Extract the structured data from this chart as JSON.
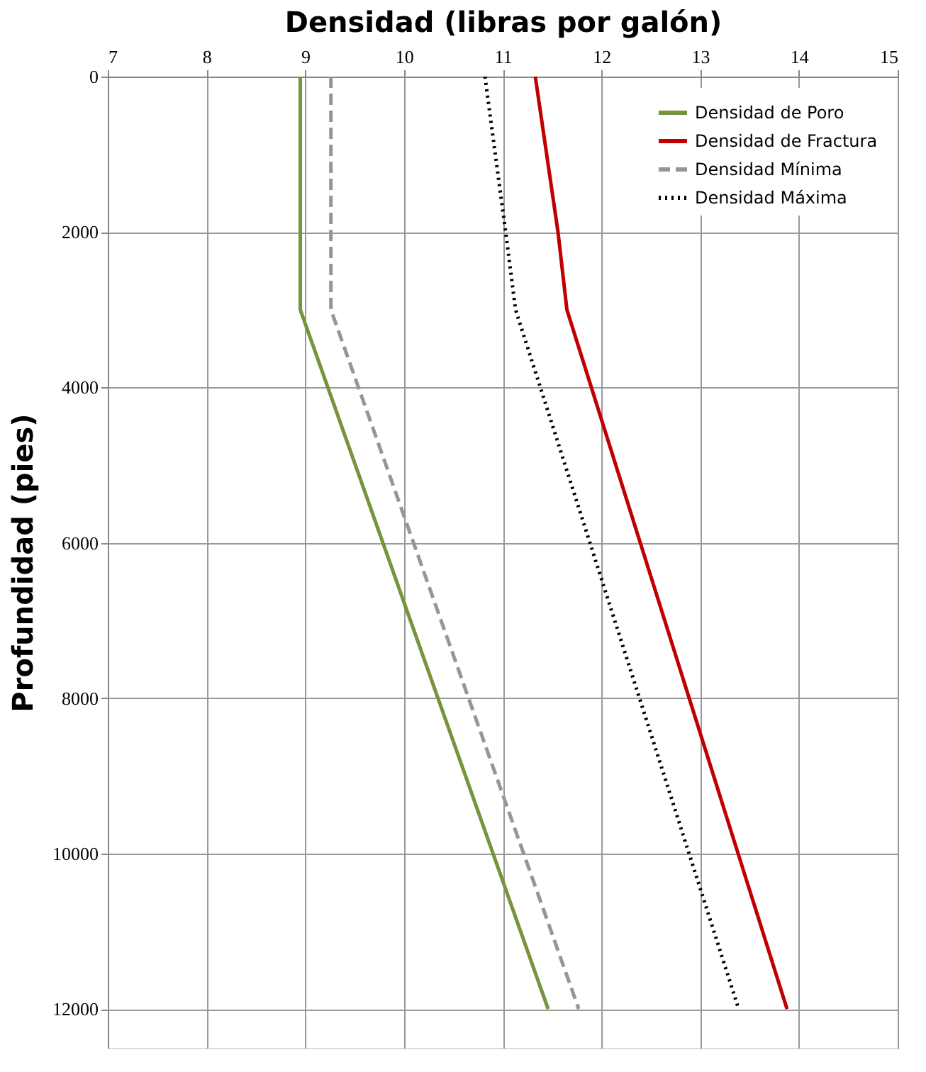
{
  "chart_data": {
    "type": "line",
    "xlabel": "Densidad (libras por galón)",
    "ylabel": "Profundidad (pies)",
    "xlim": [
      7,
      15
    ],
    "xticks": [
      7,
      8,
      9,
      10,
      11,
      12,
      13,
      14,
      15
    ],
    "ylim": [
      12500,
      0
    ],
    "yticks": [
      0,
      2000,
      4000,
      6000,
      8000,
      10000,
      12000
    ],
    "grid": true,
    "legend": "top right",
    "series": [
      {
        "name": "Densidad de Poro",
        "color": "#77933c",
        "line_style": "solid",
        "x": [
          8.95,
          8.95,
          11.46
        ],
        "values": [
          0,
          3000,
          12000
        ]
      },
      {
        "name": "Densidad de Fractura",
        "color": "#c00000",
        "line_style": "solid",
        "x": [
          11.33,
          11.56,
          11.65,
          13.88
        ],
        "values": [
          0,
          2000,
          3000,
          12000
        ]
      },
      {
        "name": "Densidad Mínima",
        "color": "#969696",
        "line_style": "dashed",
        "x": [
          9.26,
          9.26,
          11.77
        ],
        "values": [
          0,
          3000,
          12000
        ]
      },
      {
        "name": "Densidad Máxima",
        "color": "#000000",
        "line_style": "dotted",
        "x": [
          10.82,
          11.03,
          11.13,
          13.39
        ],
        "values": [
          0,
          2000,
          3000,
          12000
        ]
      }
    ]
  }
}
